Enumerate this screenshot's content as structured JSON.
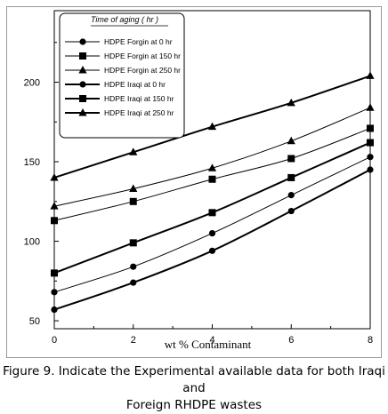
{
  "chart_data": {
    "type": "line",
    "title": "",
    "xlabel": "wt % Contaminant",
    "ylabel": "",
    "x": [
      0,
      2,
      4,
      6,
      8
    ],
    "x_ticks": [
      "0",
      "2",
      "4",
      "6",
      "8"
    ],
    "y_ticks": [
      "50",
      "100",
      "150",
      "200"
    ],
    "xlim": [
      0,
      8
    ],
    "ylim": [
      45,
      245
    ],
    "grid": false,
    "legend_title": "Time of aging ( hr )",
    "legend_position": "top-left",
    "series": [
      {
        "name": "HDPE Forgin at 0 hr",
        "marker": "circle",
        "line": "thin",
        "values": [
          68,
          84,
          105,
          129,
          153
        ]
      },
      {
        "name": "HDPE Forgin at 150 hr",
        "marker": "square",
        "line": "thin",
        "values": [
          113,
          125,
          139,
          152,
          171
        ]
      },
      {
        "name": "HDPE Forgin at 250 hr",
        "marker": "triangle",
        "line": "thin",
        "values": [
          122,
          133,
          146,
          163,
          184
        ]
      },
      {
        "name": "HDPE Iraqi at 0 hr",
        "marker": "circle",
        "line": "thick",
        "values": [
          57,
          74,
          94,
          119,
          145
        ]
      },
      {
        "name": "HDPE Iraqi at 150 hr",
        "marker": "square",
        "line": "thick",
        "values": [
          80,
          99,
          118,
          140,
          162
        ]
      },
      {
        "name": "HDPE Iraqi at 250 hr",
        "marker": "triangle",
        "line": "thick",
        "values": [
          140,
          156,
          172,
          187,
          204
        ]
      }
    ]
  },
  "caption": {
    "line1": "Figure 9. Indicate the Experimental available data for both Iraqi and",
    "line2": "Foreign RHDPE wastes"
  }
}
